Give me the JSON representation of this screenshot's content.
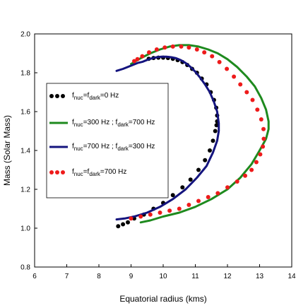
{
  "chart_data": {
    "type": "line",
    "xlabel": "Equatorial radius (kms)",
    "ylabel": "Mass (Solar Mass)",
    "xlim": [
      6,
      14
    ],
    "ylim": [
      0.8,
      2.0
    ],
    "x_ticks": [
      "6",
      "7",
      "8",
      "9",
      "10",
      "11",
      "12",
      "13",
      "14"
    ],
    "y_ticks": [
      "0.8",
      "1.0",
      "1.2",
      "1.4",
      "1.6",
      "1.8",
      "2.0"
    ],
    "x_tick_values": [
      6,
      7,
      8,
      9,
      10,
      11,
      12,
      13,
      14
    ],
    "y_tick_values": [
      0.8,
      1.0,
      1.2,
      1.4,
      1.6,
      1.8,
      2.0
    ],
    "grid": false,
    "legend_position": "left",
    "series": [
      {
        "style": "dots",
        "color": "#000000",
        "legend_parts": [
          "f",
          "nuc",
          "=f",
          "dark",
          "=0 Hz"
        ],
        "x": [
          8.6,
          8.75,
          8.9,
          9.1,
          9.4,
          9.7,
          10.0,
          10.3,
          10.6,
          10.85,
          11.1,
          11.3,
          11.45,
          11.55,
          11.62,
          11.66,
          11.68,
          11.68,
          11.65,
          11.58,
          11.48,
          11.35,
          11.2,
          11.05,
          10.9,
          10.75,
          10.6,
          10.45,
          10.3,
          10.15,
          10.0,
          9.85,
          9.7,
          9.55
        ],
        "y": [
          1.01,
          1.02,
          1.03,
          1.05,
          1.07,
          1.1,
          1.13,
          1.17,
          1.21,
          1.25,
          1.3,
          1.35,
          1.4,
          1.45,
          1.5,
          1.53,
          1.55,
          1.58,
          1.62,
          1.66,
          1.7,
          1.74,
          1.77,
          1.8,
          1.82,
          1.84,
          1.855,
          1.865,
          1.872,
          1.876,
          1.878,
          1.878,
          1.876,
          1.872
        ]
      },
      {
        "style": "line",
        "color": "#1e8a1e",
        "legend_parts": [
          "f",
          "nuc",
          "=300 Hz ; f",
          "dark",
          "=700 Hz"
        ],
        "x": [
          9.3,
          9.6,
          10.0,
          10.5,
          11.0,
          11.5,
          12.0,
          12.4,
          12.75,
          13.0,
          13.2,
          13.28,
          13.28,
          13.2,
          13.05,
          12.85,
          12.6,
          12.3,
          12.0,
          11.7,
          11.4,
          11.1,
          10.8,
          10.5,
          10.2,
          9.9,
          9.6,
          9.3,
          9.0
        ],
        "y": [
          1.03,
          1.04,
          1.06,
          1.08,
          1.11,
          1.15,
          1.2,
          1.26,
          1.33,
          1.4,
          1.46,
          1.51,
          1.55,
          1.61,
          1.67,
          1.73,
          1.78,
          1.83,
          1.87,
          1.9,
          1.92,
          1.935,
          1.942,
          1.942,
          1.935,
          1.92,
          1.9,
          1.875,
          1.845
        ]
      },
      {
        "style": "line",
        "color": "#14147e",
        "legend_parts": [
          "f",
          "nuc",
          "=700 Hz ; f",
          "dark",
          "=300 Hz"
        ],
        "x": [
          8.55,
          8.8,
          9.1,
          9.5,
          9.9,
          10.3,
          10.7,
          11.05,
          11.35,
          11.55,
          11.68,
          11.73,
          11.73,
          11.68,
          11.58,
          11.45,
          11.3,
          11.15,
          11.0,
          10.85,
          10.7,
          10.55,
          10.4,
          10.25,
          10.1,
          9.95,
          9.8,
          9.65,
          9.5,
          9.35,
          9.2,
          9.05,
          8.9,
          8.75,
          8.55
        ],
        "y": [
          1.045,
          1.05,
          1.06,
          1.08,
          1.11,
          1.15,
          1.2,
          1.26,
          1.32,
          1.39,
          1.45,
          1.5,
          1.54,
          1.6,
          1.65,
          1.7,
          1.74,
          1.775,
          1.805,
          1.83,
          1.85,
          1.865,
          1.875,
          1.88,
          1.883,
          1.883,
          1.88,
          1.874,
          1.866,
          1.856,
          1.85,
          1.84,
          1.83,
          1.82,
          1.81
        ]
      },
      {
        "style": "dots",
        "color": "#ee1b1b",
        "legend_parts": [
          "f",
          "nuc",
          "=f",
          "dark",
          "=700 Hz"
        ],
        "x": [
          9.0,
          9.3,
          9.6,
          9.9,
          10.2,
          10.5,
          10.8,
          11.1,
          11.4,
          11.7,
          12.0,
          12.3,
          12.55,
          12.75,
          12.9,
          13.02,
          13.1,
          13.13,
          13.12,
          13.05,
          12.93,
          12.78,
          12.6,
          12.4,
          12.2,
          11.98,
          11.75,
          11.52,
          11.28,
          11.05,
          10.8,
          10.56,
          10.3,
          10.05,
          9.8,
          9.56,
          9.35,
          9.2,
          9.1
        ],
        "y": [
          1.05,
          1.06,
          1.07,
          1.08,
          1.09,
          1.1,
          1.12,
          1.14,
          1.16,
          1.18,
          1.21,
          1.24,
          1.27,
          1.3,
          1.34,
          1.38,
          1.42,
          1.46,
          1.51,
          1.56,
          1.61,
          1.66,
          1.7,
          1.74,
          1.78,
          1.82,
          1.855,
          1.885,
          1.905,
          1.92,
          1.93,
          1.935,
          1.935,
          1.93,
          1.92,
          1.905,
          1.885,
          1.87,
          1.86
        ]
      }
    ]
  }
}
